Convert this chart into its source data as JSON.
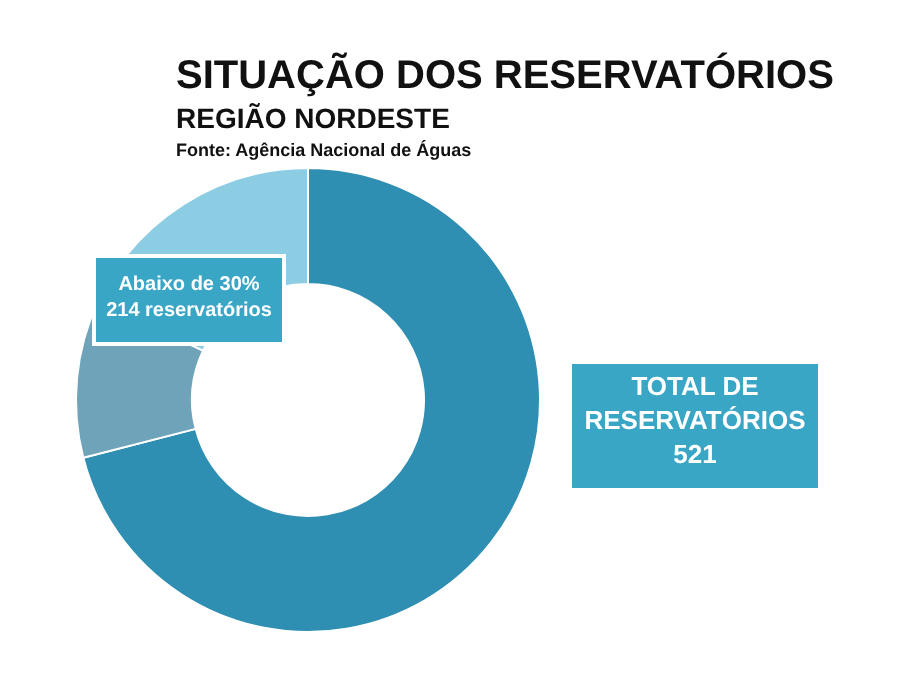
{
  "chart_data": {
    "type": "donut",
    "title": "SITUAÇÃO DOS RESERVATÓRIOS",
    "subtitle": "REGIÃO NORDESTE",
    "categories": [
      null,
      null,
      null
    ],
    "values": [
      71,
      11,
      18
    ],
    "colors": [
      "#2f8fb2",
      "#6ea3b9",
      "#8ccde4"
    ],
    "annotations": [
      "Fonte: Agência Nacional de Águas",
      "Abaixo de 30%\n214 reservatórios",
      "TOTAL DE\nRESERVATÓRIOS\n521"
    ]
  }
}
